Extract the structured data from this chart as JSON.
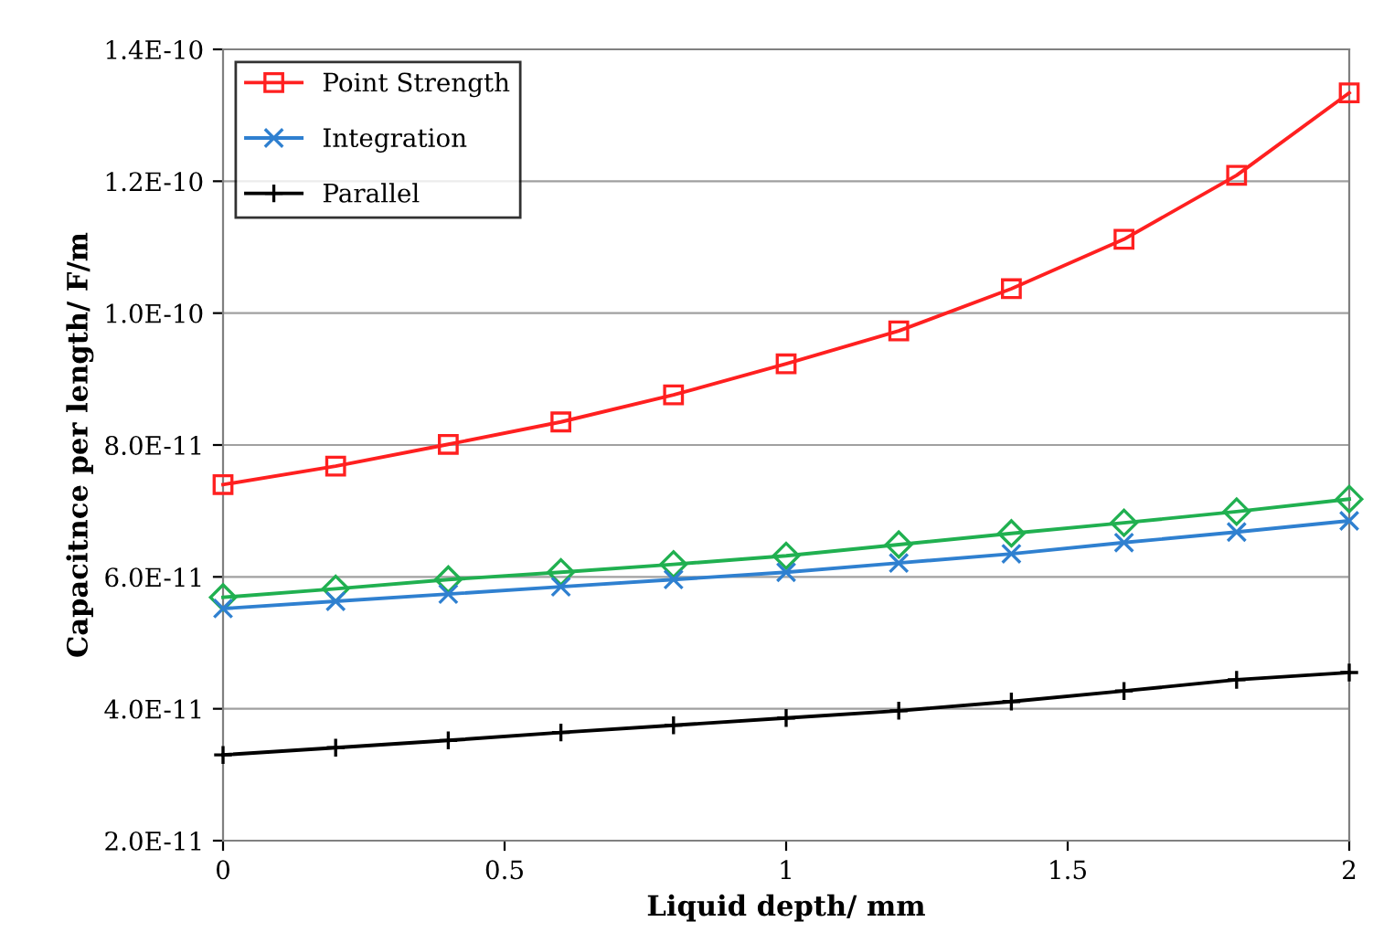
{
  "chart_data": {
    "type": "line",
    "xlabel": "Liquid depth/ mm",
    "ylabel": "Capacitnce per length/ F/m",
    "x": [
      0,
      0.2,
      0.4,
      0.6,
      0.8,
      1.0,
      1.2,
      1.4,
      1.6,
      1.8,
      2.0
    ],
    "series": [
      {
        "name": "Point Strength",
        "color": "#ff2020",
        "marker": "square",
        "values": [
          7.4e-11,
          7.68e-11,
          8.01e-11,
          8.35e-11,
          8.76e-11,
          9.23e-11,
          9.73e-11,
          1.037e-10,
          1.112e-10,
          1.209e-10,
          1.334e-10
        ]
      },
      {
        "color": "#20b050",
        "marker": "diamond",
        "values": [
          5.69e-11,
          5.82e-11,
          5.96e-11,
          6.07e-11,
          6.19e-11,
          6.32e-11,
          6.49e-11,
          6.66e-11,
          6.82e-11,
          6.99e-11,
          7.18e-11
        ]
      },
      {
        "name": "Integration",
        "color": "#2f80d0",
        "marker": "cross",
        "values": [
          5.52e-11,
          5.63e-11,
          5.74e-11,
          5.85e-11,
          5.96e-11,
          6.07e-11,
          6.21e-11,
          6.35e-11,
          6.52e-11,
          6.68e-11,
          6.85e-11
        ]
      },
      {
        "name": "Parallel",
        "color": "#000000",
        "marker": "plus",
        "values": [
          3.3e-11,
          3.41e-11,
          3.52e-11,
          3.64e-11,
          3.75e-11,
          3.86e-11,
          3.97e-11,
          4.11e-11,
          4.27e-11,
          4.44e-11,
          4.55e-11
        ]
      }
    ],
    "xlim": [
      0,
      2
    ],
    "xticks": [
      0,
      0.5,
      1,
      1.5,
      2
    ],
    "ylim": [
      2e-11,
      1.4e-10
    ],
    "yticks": [
      {
        "value": 2e-11,
        "label": "2.0E-11"
      },
      {
        "value": 4e-11,
        "label": "4.0E-11"
      },
      {
        "value": 6e-11,
        "label": "6.0E-11"
      },
      {
        "value": 8e-11,
        "label": "8.0E-11"
      },
      {
        "value": 1e-10,
        "label": "1.0E-10"
      },
      {
        "value": 1.2e-10,
        "label": "1.2E-10"
      },
      {
        "value": 1.4e-10,
        "label": "1.4E-10"
      }
    ],
    "grid": "y",
    "legend": "top left",
    "line_style": "solid"
  }
}
